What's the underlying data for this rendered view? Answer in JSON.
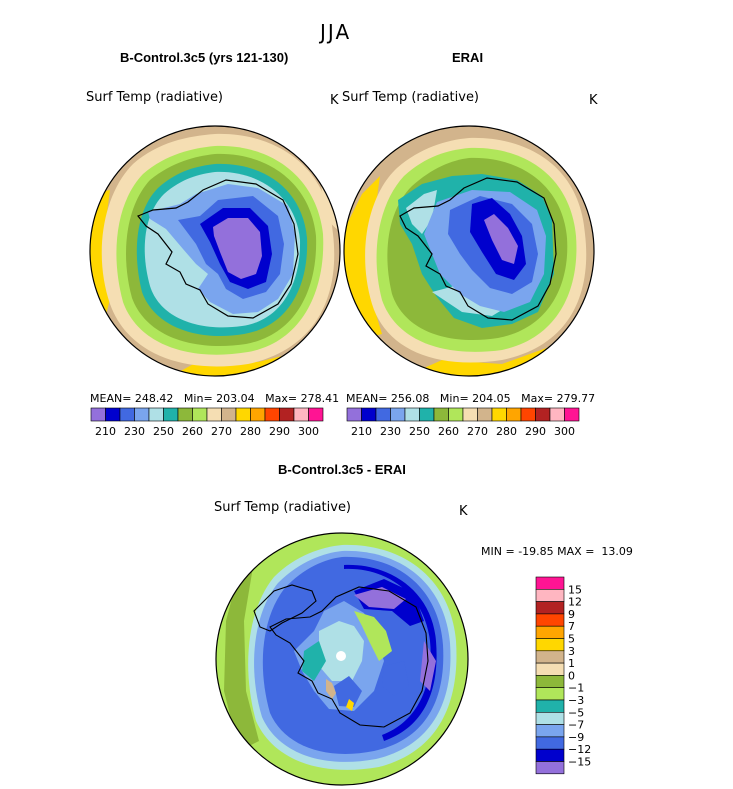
{
  "header": {
    "season": "JJA"
  },
  "panels": {
    "model": {
      "title": "B-Control.3c5 (yrs 121-130)",
      "variable": "Surf Temp (radiative)",
      "units": "K",
      "stats": {
        "mean_label": "MEAN=",
        "mean": "248.42",
        "min_label": "Min=",
        "min": "203.04",
        "max_label": "Max=",
        "max": "278.41"
      }
    },
    "obs": {
      "title": "ERAI",
      "variable": "Surf Temp (radiative)",
      "units": "K",
      "stats": {
        "mean_label": "MEAN=",
        "mean": "256.08",
        "min_label": "Min=",
        "min": "204.05",
        "max_label": "Max=",
        "max": "279.77"
      }
    },
    "diff": {
      "title": "B-Control.3c5 - ERAI",
      "variable": "Surf Temp (radiative)",
      "units": "K",
      "stats": {
        "min_label": "MIN =",
        "min": "-19.85",
        "max_label": "MAX =",
        "max": "13.09"
      }
    }
  },
  "colorbars": {
    "abs": {
      "colors": [
        "#9370DB",
        "#0000CD",
        "#4169E1",
        "#7AA5EE",
        "#AFE0E6",
        "#20B2AA",
        "#8DB83A",
        "#B0E65A",
        "#F5DEB3",
        "#D2B48C",
        "#FFD700",
        "#FFA500",
        "#FF4500",
        "#B22222",
        "#FFB6C1",
        "#FF1493"
      ],
      "labels": [
        "210",
        "230",
        "250",
        "260",
        "270",
        "280",
        "290",
        "300"
      ]
    },
    "diff": {
      "colors": [
        "#9370DB",
        "#0000CD",
        "#4169E1",
        "#7AA5EE",
        "#AFE0E6",
        "#20B2AA",
        "#B0E65A",
        "#8DB83A",
        "#F5DEB3",
        "#D2B48C",
        "#FFD700",
        "#FFA500",
        "#FF4500",
        "#B22222",
        "#FFB6C1",
        "#FF1493"
      ],
      "labels": [
        "15",
        "12",
        "9",
        "7",
        "5",
        "3",
        "1",
        "0",
        "−1",
        "−3",
        "−5",
        "−7",
        "−9",
        "−12",
        "−15"
      ]
    }
  }
}
